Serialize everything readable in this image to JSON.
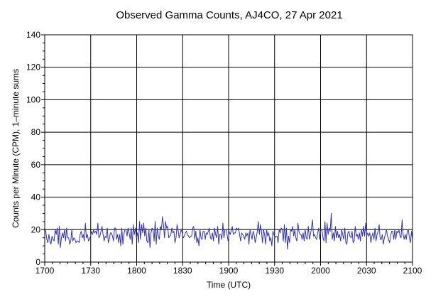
{
  "chart_data": {
    "type": "line",
    "title": "Observed Gamma Counts, AJ4CO, 27 Apr 2021",
    "xlabel": "Time (UTC)",
    "ylabel": "Counts per Minute (CPM), 1–minute sums",
    "x_ticks": [
      "1700",
      "1730",
      "1800",
      "1830",
      "1900",
      "1930",
      "2000",
      "2030",
      "2100"
    ],
    "x_range_minutes": [
      0,
      240
    ],
    "ylim": [
      0,
      140
    ],
    "y_ticks": [
      0,
      20,
      40,
      60,
      80,
      100,
      120,
      140
    ],
    "grid": true,
    "line_color": "#3333aa",
    "series": [
      {
        "values": [
          20,
          19,
          14,
          12,
          17,
          13,
          11,
          16,
          14,
          13,
          20,
          17,
          21,
          11,
          22,
          9,
          15,
          18,
          15,
          20,
          13,
          21,
          15,
          15,
          11,
          13,
          20,
          13,
          15,
          14,
          12,
          13,
          13,
          12,
          17,
          19,
          15,
          17,
          13,
          24,
          15,
          17,
          13,
          14,
          16,
          19,
          17,
          20,
          18,
          19,
          17,
          24,
          15,
          16,
          19,
          22,
          17,
          13,
          16,
          15,
          21,
          12,
          14,
          18,
          18,
          16,
          13,
          21,
          21,
          14,
          17,
          12,
          17,
          10,
          21,
          11,
          17,
          20,
          20,
          16,
          21,
          18,
          14,
          21,
          11,
          23,
          17,
          21,
          15,
          18,
          12,
          25,
          14,
          23,
          18,
          24,
          16,
          21,
          13,
          12,
          20,
          9,
          18,
          21,
          20,
          13,
          25,
          11,
          21,
          16,
          14,
          22,
          20,
          28,
          23,
          15,
          25,
          21,
          22,
          15,
          16,
          17,
          21,
          18,
          19,
          12,
          15,
          23,
          20,
          15,
          17,
          20,
          18,
          15,
          16,
          18,
          19,
          17,
          16,
          15,
          16,
          16,
          21,
          22,
          14,
          19,
          12,
          15,
          10,
          20,
          15,
          14,
          19,
          19,
          14,
          18,
          17,
          19,
          21,
          15,
          14,
          18,
          13,
          21,
          17,
          15,
          22,
          11,
          17,
          17,
          14,
          24,
          15,
          20,
          20,
          17,
          13,
          19,
          17,
          19,
          22,
          17,
          18,
          18,
          21,
          20,
          21,
          17,
          13,
          18,
          17,
          16,
          14,
          18,
          16,
          18,
          11,
          20,
          17,
          14,
          19,
          17,
          12,
          15,
          19,
          25,
          17,
          23,
          19,
          12,
          20,
          17,
          11,
          20,
          16,
          18,
          13,
          15,
          10,
          19,
          17,
          15,
          16,
          16,
          12,
          20,
          18,
          21,
          20,
          13,
          23,
          12,
          21,
          8,
          16,
          12,
          20,
          19,
          22,
          16,
          20,
          15,
          13,
          24,
          19,
          17,
          17,
          14,
          18,
          13,
          20,
          15,
          14,
          22,
          14,
          17,
          21,
          26,
          16,
          17,
          15,
          14,
          18,
          21,
          14,
          20,
          20,
          15,
          13,
          25,
          12,
          24,
          17,
          21,
          19,
          30,
          14,
          18,
          13,
          22,
          15,
          19,
          15,
          17,
          13,
          20,
          17,
          14,
          21,
          12,
          11,
          18,
          19,
          16,
          15,
          19,
          12,
          13,
          22,
          16,
          17,
          14,
          18,
          13,
          20,
          16,
          22,
          16,
          24,
          16,
          18,
          16,
          18,
          12,
          16,
          18,
          14,
          21,
          13,
          17,
          19,
          23,
          14,
          14,
          17,
          11,
          15,
          17,
          20,
          16,
          14,
          12,
          16,
          19,
          19,
          14,
          20,
          14,
          19,
          18,
          20,
          16,
          15,
          26,
          17,
          14,
          17,
          14,
          19,
          20,
          15,
          12,
          19,
          14
        ]
      }
    ]
  }
}
